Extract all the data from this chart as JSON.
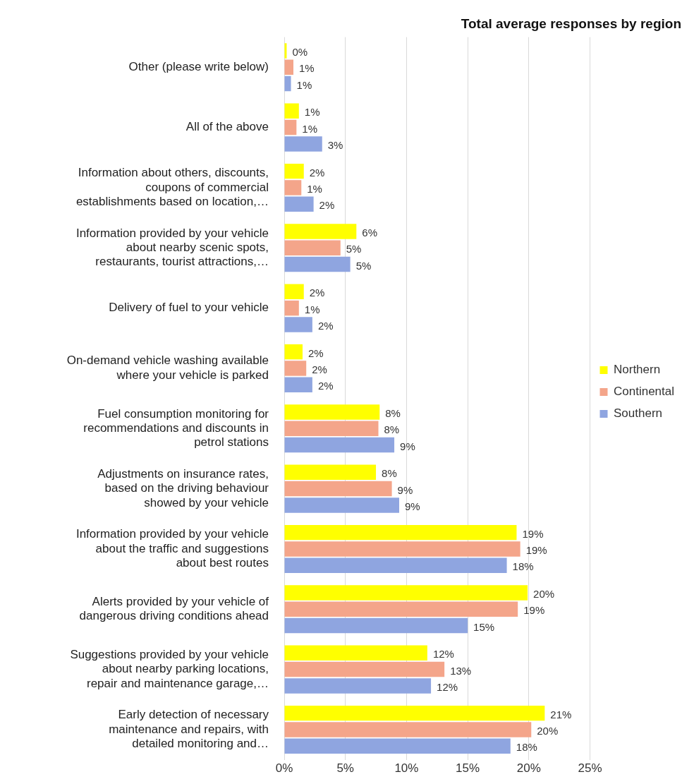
{
  "chart_data": {
    "type": "bar",
    "orientation": "horizontal",
    "title": "Total average responses by region",
    "categories": [
      "Other (please write below)",
      "All of the above",
      "Information about others, discounts,\ncoupons of commercial\nestablishments based on location,…",
      "Information provided by your vehicle\nabout nearby scenic spots,\nrestaurants, tourist attractions,…",
      "Delivery of fuel to your vehicle",
      "On-demand vehicle washing available\nwhere your vehicle is parked",
      "Fuel consumption monitoring for\nrecommendations and discounts in\npetrol stations",
      "Adjustments on insurance rates,\nbased on the driving behaviour\nshowed by your vehicle",
      "Information provided by your vehicle\nabout the traffic and suggestions\nabout best routes",
      "Alerts provided by your vehicle of\ndangerous driving conditions ahead",
      "Suggestions provided by your vehicle\nabout nearby parking locations,\nrepair and maintenance garage,…",
      "Early detection of necessary\nmaintenance and repairs, with\ndetailed monitoring and…"
    ],
    "series": [
      {
        "name": "Northern",
        "color": "#ffff00",
        "values": [
          0.2,
          1.2,
          1.6,
          5.9,
          1.6,
          1.5,
          7.8,
          7.5,
          19.0,
          19.9,
          11.7,
          21.3
        ],
        "value_labels": [
          "0%",
          "1%",
          "2%",
          "6%",
          "2%",
          "2%",
          "8%",
          "8%",
          "19%",
          "20%",
          "12%",
          "21%"
        ]
      },
      {
        "name": "Continental",
        "color": "#f4a58a",
        "values": [
          0.75,
          1.0,
          1.4,
          4.6,
          1.2,
          1.8,
          7.7,
          8.8,
          19.3,
          19.1,
          13.1,
          20.2
        ],
        "value_labels": [
          "1%",
          "1%",
          "1%",
          "5%",
          "1%",
          "2%",
          "8%",
          "9%",
          "19%",
          "19%",
          "13%",
          "20%"
        ]
      },
      {
        "name": "Southern",
        "color": "#8fa5e0",
        "values": [
          0.55,
          3.1,
          2.4,
          5.4,
          2.3,
          2.3,
          9.0,
          9.4,
          18.2,
          15.0,
          12.0,
          18.5
        ],
        "value_labels": [
          "1%",
          "3%",
          "2%",
          "5%",
          "2%",
          "2%",
          "9%",
          "9%",
          "18%",
          "15%",
          "12%",
          "18%"
        ]
      }
    ],
    "xlim": [
      0,
      25
    ],
    "xticks": [
      {
        "value": 0,
        "label": "0%"
      },
      {
        "value": 5,
        "label": "5%"
      },
      {
        "value": 10,
        "label": "10%"
      },
      {
        "value": 15,
        "label": "15%"
      },
      {
        "value": 20,
        "label": "20%"
      },
      {
        "value": 25,
        "label": "25%"
      }
    ],
    "grid": "x",
    "legend": "right"
  }
}
